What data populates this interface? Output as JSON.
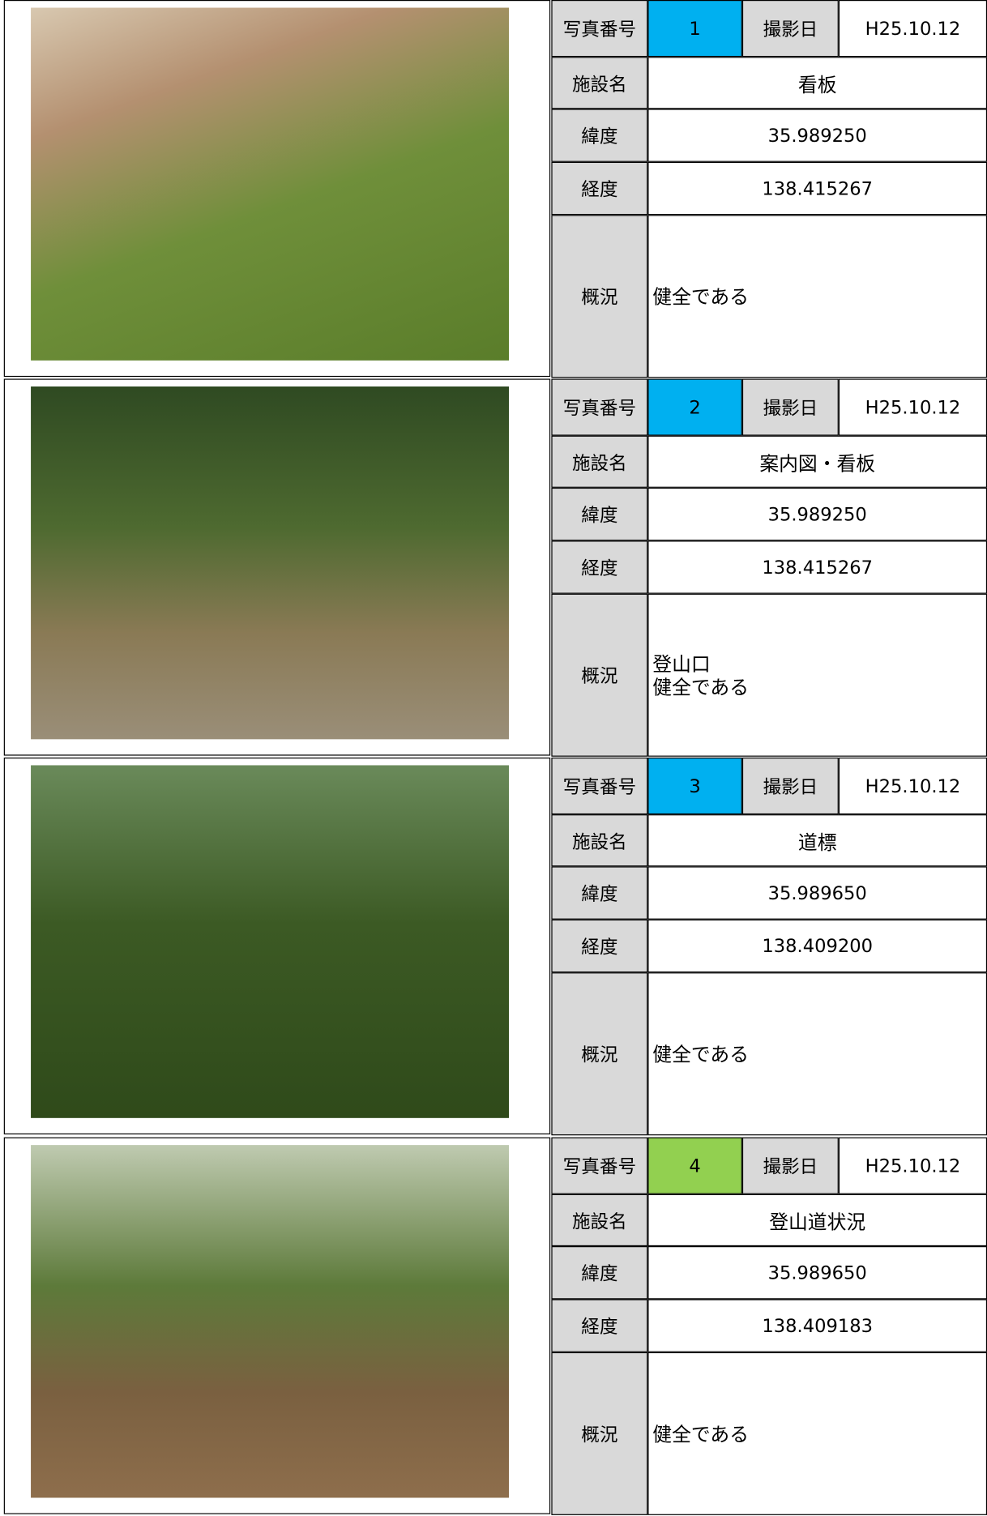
{
  "labels": {
    "photo_no": "写真番号",
    "date": "撮影日",
    "facility": "施設名",
    "lat": "緯度",
    "lon": "経度",
    "condition": "概況"
  },
  "records": [
    {
      "no": "1",
      "color": "#00b0f0",
      "date": "H25.10.12",
      "facility": "看板",
      "lat": "35.989250",
      "lon": "138.415267",
      "condition": [
        "健全である"
      ]
    },
    {
      "no": "2",
      "color": "#00b0f0",
      "date": "H25.10.12",
      "facility": "案内図・看板",
      "lat": "35.989250",
      "lon": "138.415267",
      "condition": [
        "登山口",
        "健全である"
      ]
    },
    {
      "no": "3",
      "color": "#00b0f0",
      "date": "H25.10.12",
      "facility": "道標",
      "lat": "35.989650",
      "lon": "138.409200",
      "condition": [
        "健全である"
      ]
    },
    {
      "no": "4",
      "color": "#92d050",
      "date": "H25.10.12",
      "facility": "登山道状況",
      "lat": "35.989650",
      "lon": "138.409183",
      "condition": [
        "健全である"
      ]
    }
  ]
}
